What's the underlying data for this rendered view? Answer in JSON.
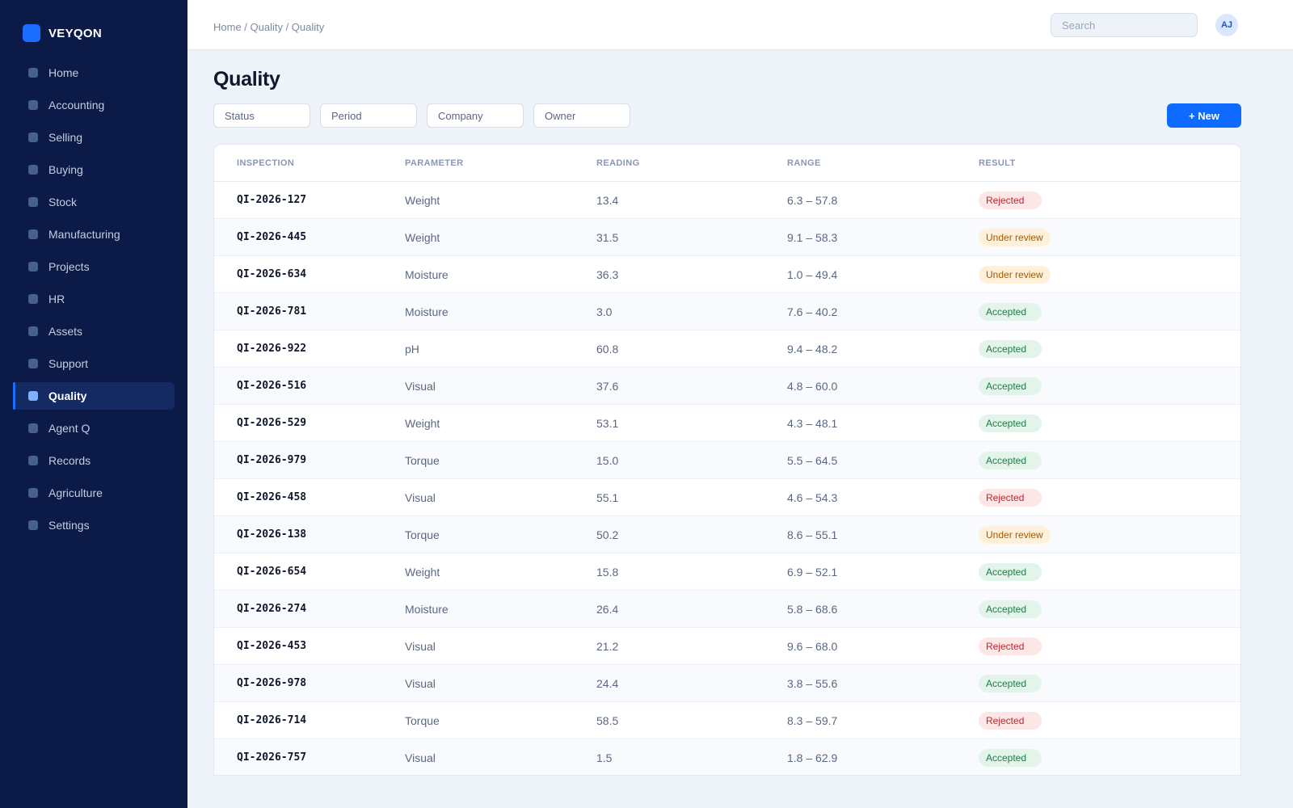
{
  "brand": {
    "name": "VEYQON"
  },
  "sidebar": {
    "items": [
      {
        "label": "Home",
        "active": false
      },
      {
        "label": "Accounting",
        "active": false
      },
      {
        "label": "Selling",
        "active": false
      },
      {
        "label": "Buying",
        "active": false
      },
      {
        "label": "Stock",
        "active": false
      },
      {
        "label": "Manufacturing",
        "active": false
      },
      {
        "label": "Projects",
        "active": false
      },
      {
        "label": "HR",
        "active": false
      },
      {
        "label": "Assets",
        "active": false
      },
      {
        "label": "Support",
        "active": false
      },
      {
        "label": "Quality",
        "active": true
      },
      {
        "label": "Agent Q",
        "active": false
      },
      {
        "label": "Records",
        "active": false
      },
      {
        "label": "Agriculture",
        "active": false
      },
      {
        "label": "Settings",
        "active": false
      }
    ]
  },
  "header": {
    "breadcrumb": "Home / Quality / Quality",
    "search_placeholder": "Search",
    "avatar_initials": "AJ"
  },
  "main": {
    "title": "Quality",
    "filters": [
      "Status",
      "Period",
      "Company",
      "Owner"
    ],
    "new_button": "+ New",
    "columns": [
      "INSPECTION",
      "PARAMETER",
      "READING",
      "RANGE",
      "RESULT"
    ],
    "rows": [
      {
        "id": "QI-2026-127",
        "parameter": "Weight",
        "reading": "13.4",
        "range": "6.3 – 57.8",
        "result": "Rejected"
      },
      {
        "id": "QI-2026-445",
        "parameter": "Weight",
        "reading": "31.5",
        "range": "9.1 – 58.3",
        "result": "Under review"
      },
      {
        "id": "QI-2026-634",
        "parameter": "Moisture",
        "reading": "36.3",
        "range": "1.0 – 49.4",
        "result": "Under review"
      },
      {
        "id": "QI-2026-781",
        "parameter": "Moisture",
        "reading": "3.0",
        "range": "7.6 – 40.2",
        "result": "Accepted"
      },
      {
        "id": "QI-2026-922",
        "parameter": "pH",
        "reading": "60.8",
        "range": "9.4 – 48.2",
        "result": "Accepted"
      },
      {
        "id": "QI-2026-516",
        "parameter": "Visual",
        "reading": "37.6",
        "range": "4.8 – 60.0",
        "result": "Accepted"
      },
      {
        "id": "QI-2026-529",
        "parameter": "Weight",
        "reading": "53.1",
        "range": "4.3 – 48.1",
        "result": "Accepted"
      },
      {
        "id": "QI-2026-979",
        "parameter": "Torque",
        "reading": "15.0",
        "range": "5.5 – 64.5",
        "result": "Accepted"
      },
      {
        "id": "QI-2026-458",
        "parameter": "Visual",
        "reading": "55.1",
        "range": "4.6 – 54.3",
        "result": "Rejected"
      },
      {
        "id": "QI-2026-138",
        "parameter": "Torque",
        "reading": "50.2",
        "range": "8.6 – 55.1",
        "result": "Under review"
      },
      {
        "id": "QI-2026-654",
        "parameter": "Weight",
        "reading": "15.8",
        "range": "6.9 – 52.1",
        "result": "Accepted"
      },
      {
        "id": "QI-2026-274",
        "parameter": "Moisture",
        "reading": "26.4",
        "range": "5.8 – 68.6",
        "result": "Accepted"
      },
      {
        "id": "QI-2026-453",
        "parameter": "Visual",
        "reading": "21.2",
        "range": "9.6 – 68.0",
        "result": "Rejected"
      },
      {
        "id": "QI-2026-978",
        "parameter": "Visual",
        "reading": "24.4",
        "range": "3.8 – 55.6",
        "result": "Accepted"
      },
      {
        "id": "QI-2026-714",
        "parameter": "Torque",
        "reading": "58.5",
        "range": "8.3 – 59.7",
        "result": "Rejected"
      },
      {
        "id": "QI-2026-757",
        "parameter": "Visual",
        "reading": "1.5",
        "range": "1.8 – 62.9",
        "result": "Accepted"
      }
    ]
  },
  "colors": {
    "sidebar_bg": "#0b1a47",
    "accent": "#0f6bff",
    "rejected": "#c0262d",
    "under_review": "#a15a06",
    "accepted": "#1f7a43"
  }
}
